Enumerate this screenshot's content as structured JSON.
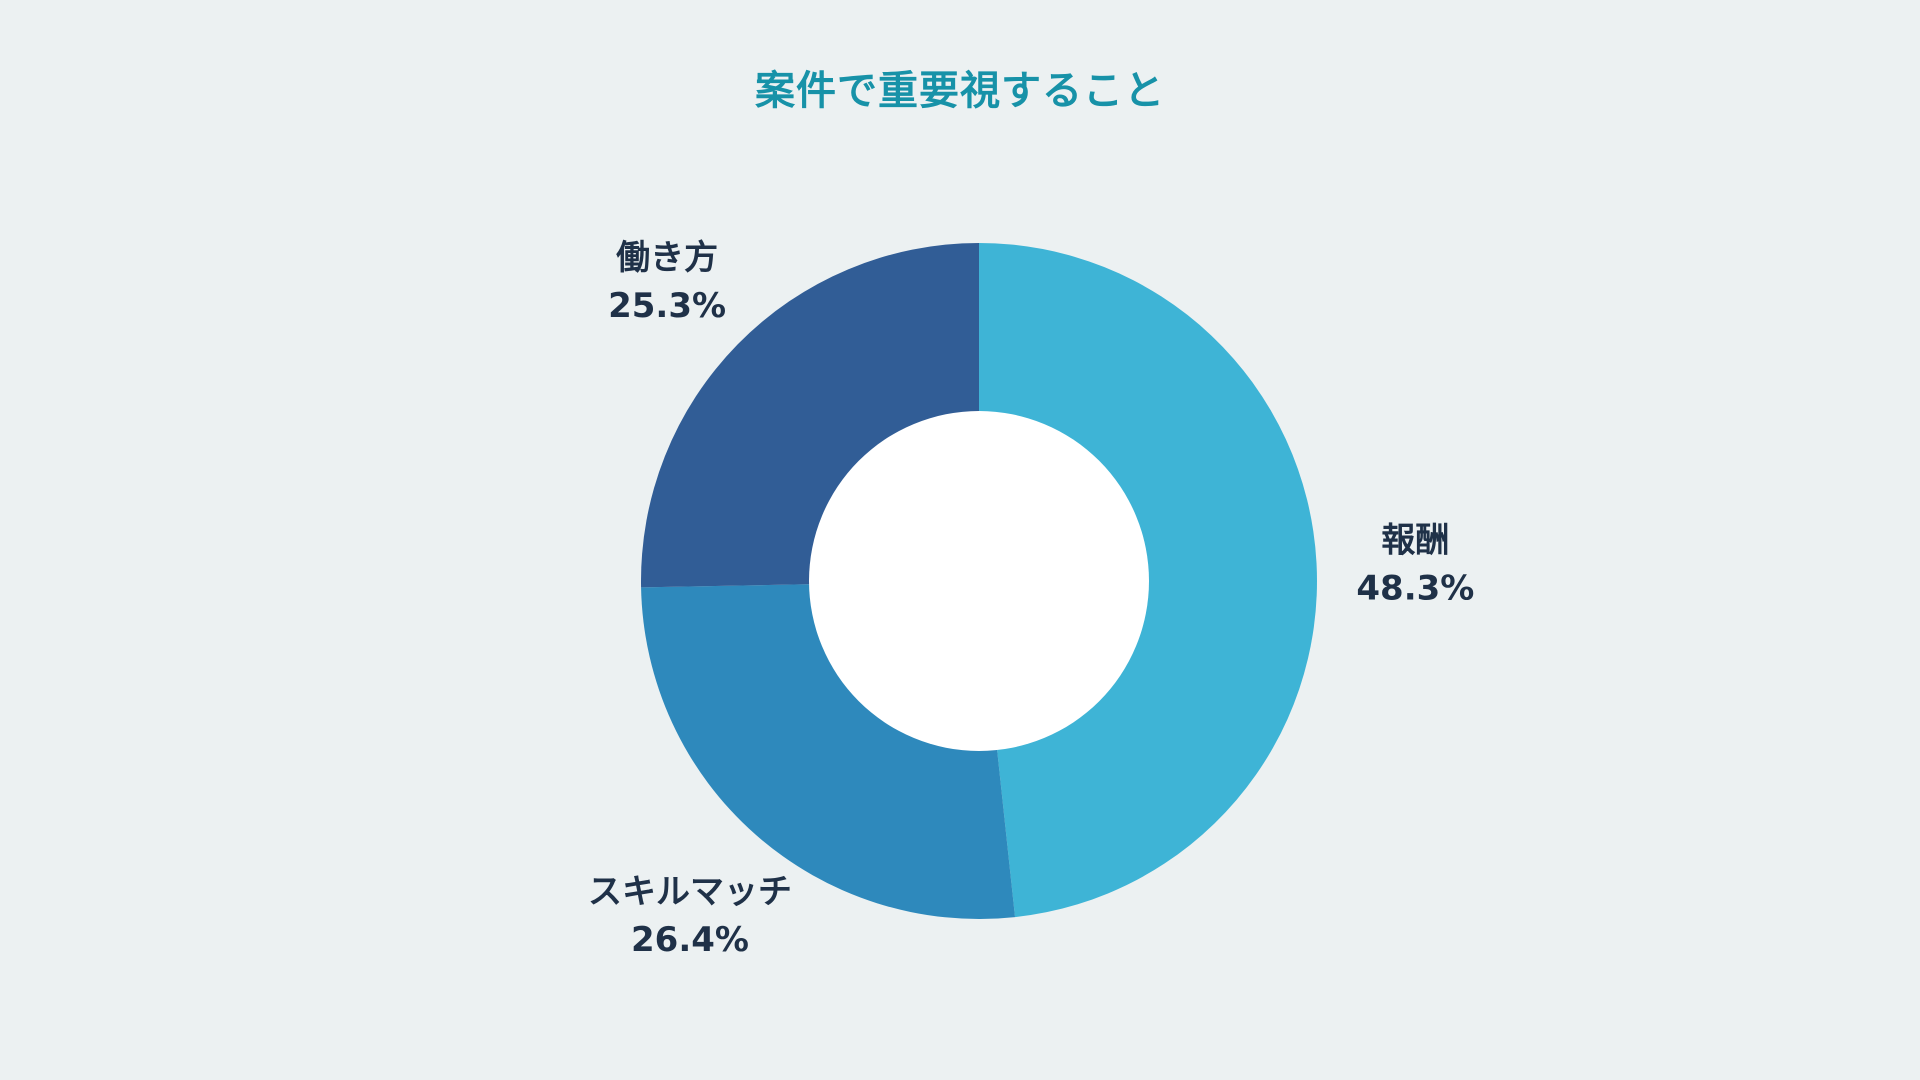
{
  "chart_data": {
    "type": "pie",
    "variant": "donut",
    "title": "案件で重要視すること",
    "categories": [
      "報酬",
      "スキルマッチ",
      "働き方"
    ],
    "values": [
      48.3,
      26.4,
      25.3
    ],
    "value_labels": [
      "48.3%",
      "26.4%",
      "25.3%"
    ],
    "colors": [
      "#3EB4D6",
      "#2E89BC",
      "#315D96"
    ],
    "start_angle": "12 o'clock",
    "direction": "clockwise",
    "label_placement": "outside",
    "legend": "none"
  },
  "colors": {
    "background": "#ECF1F2",
    "title": "#1792A8",
    "label_text": "#1F3148",
    "hole": "#FFFFFF"
  }
}
